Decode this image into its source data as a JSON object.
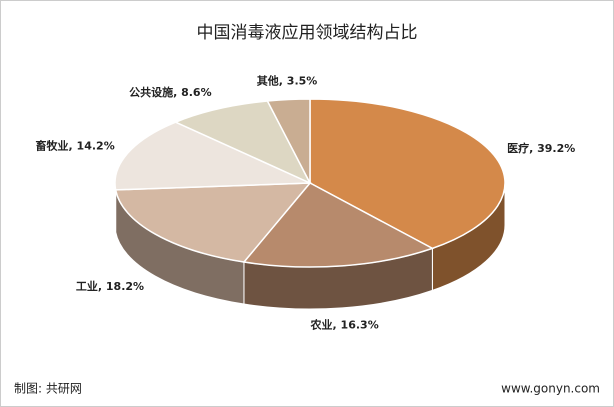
{
  "chart_data": {
    "type": "pie",
    "title": "中国消毒液应用领域结构占比",
    "values": [
      39.2,
      16.3,
      18.2,
      14.2,
      8.6,
      3.5
    ],
    "value_labels": [
      "医疗, 39.2%",
      "农业, 16.3%",
      "工业, 18.2%",
      "畜牧业, 14.2%",
      "公共设施, 8.6%",
      "其他, 3.5%"
    ],
    "colors": [
      "#d4894a",
      "#b78a6c",
      "#d4b8a3",
      "#ede5de",
      "#ddd7c3",
      "#c9ad92"
    ],
    "source": "制图: 共研网",
    "website": "www.gonyn.com"
  }
}
